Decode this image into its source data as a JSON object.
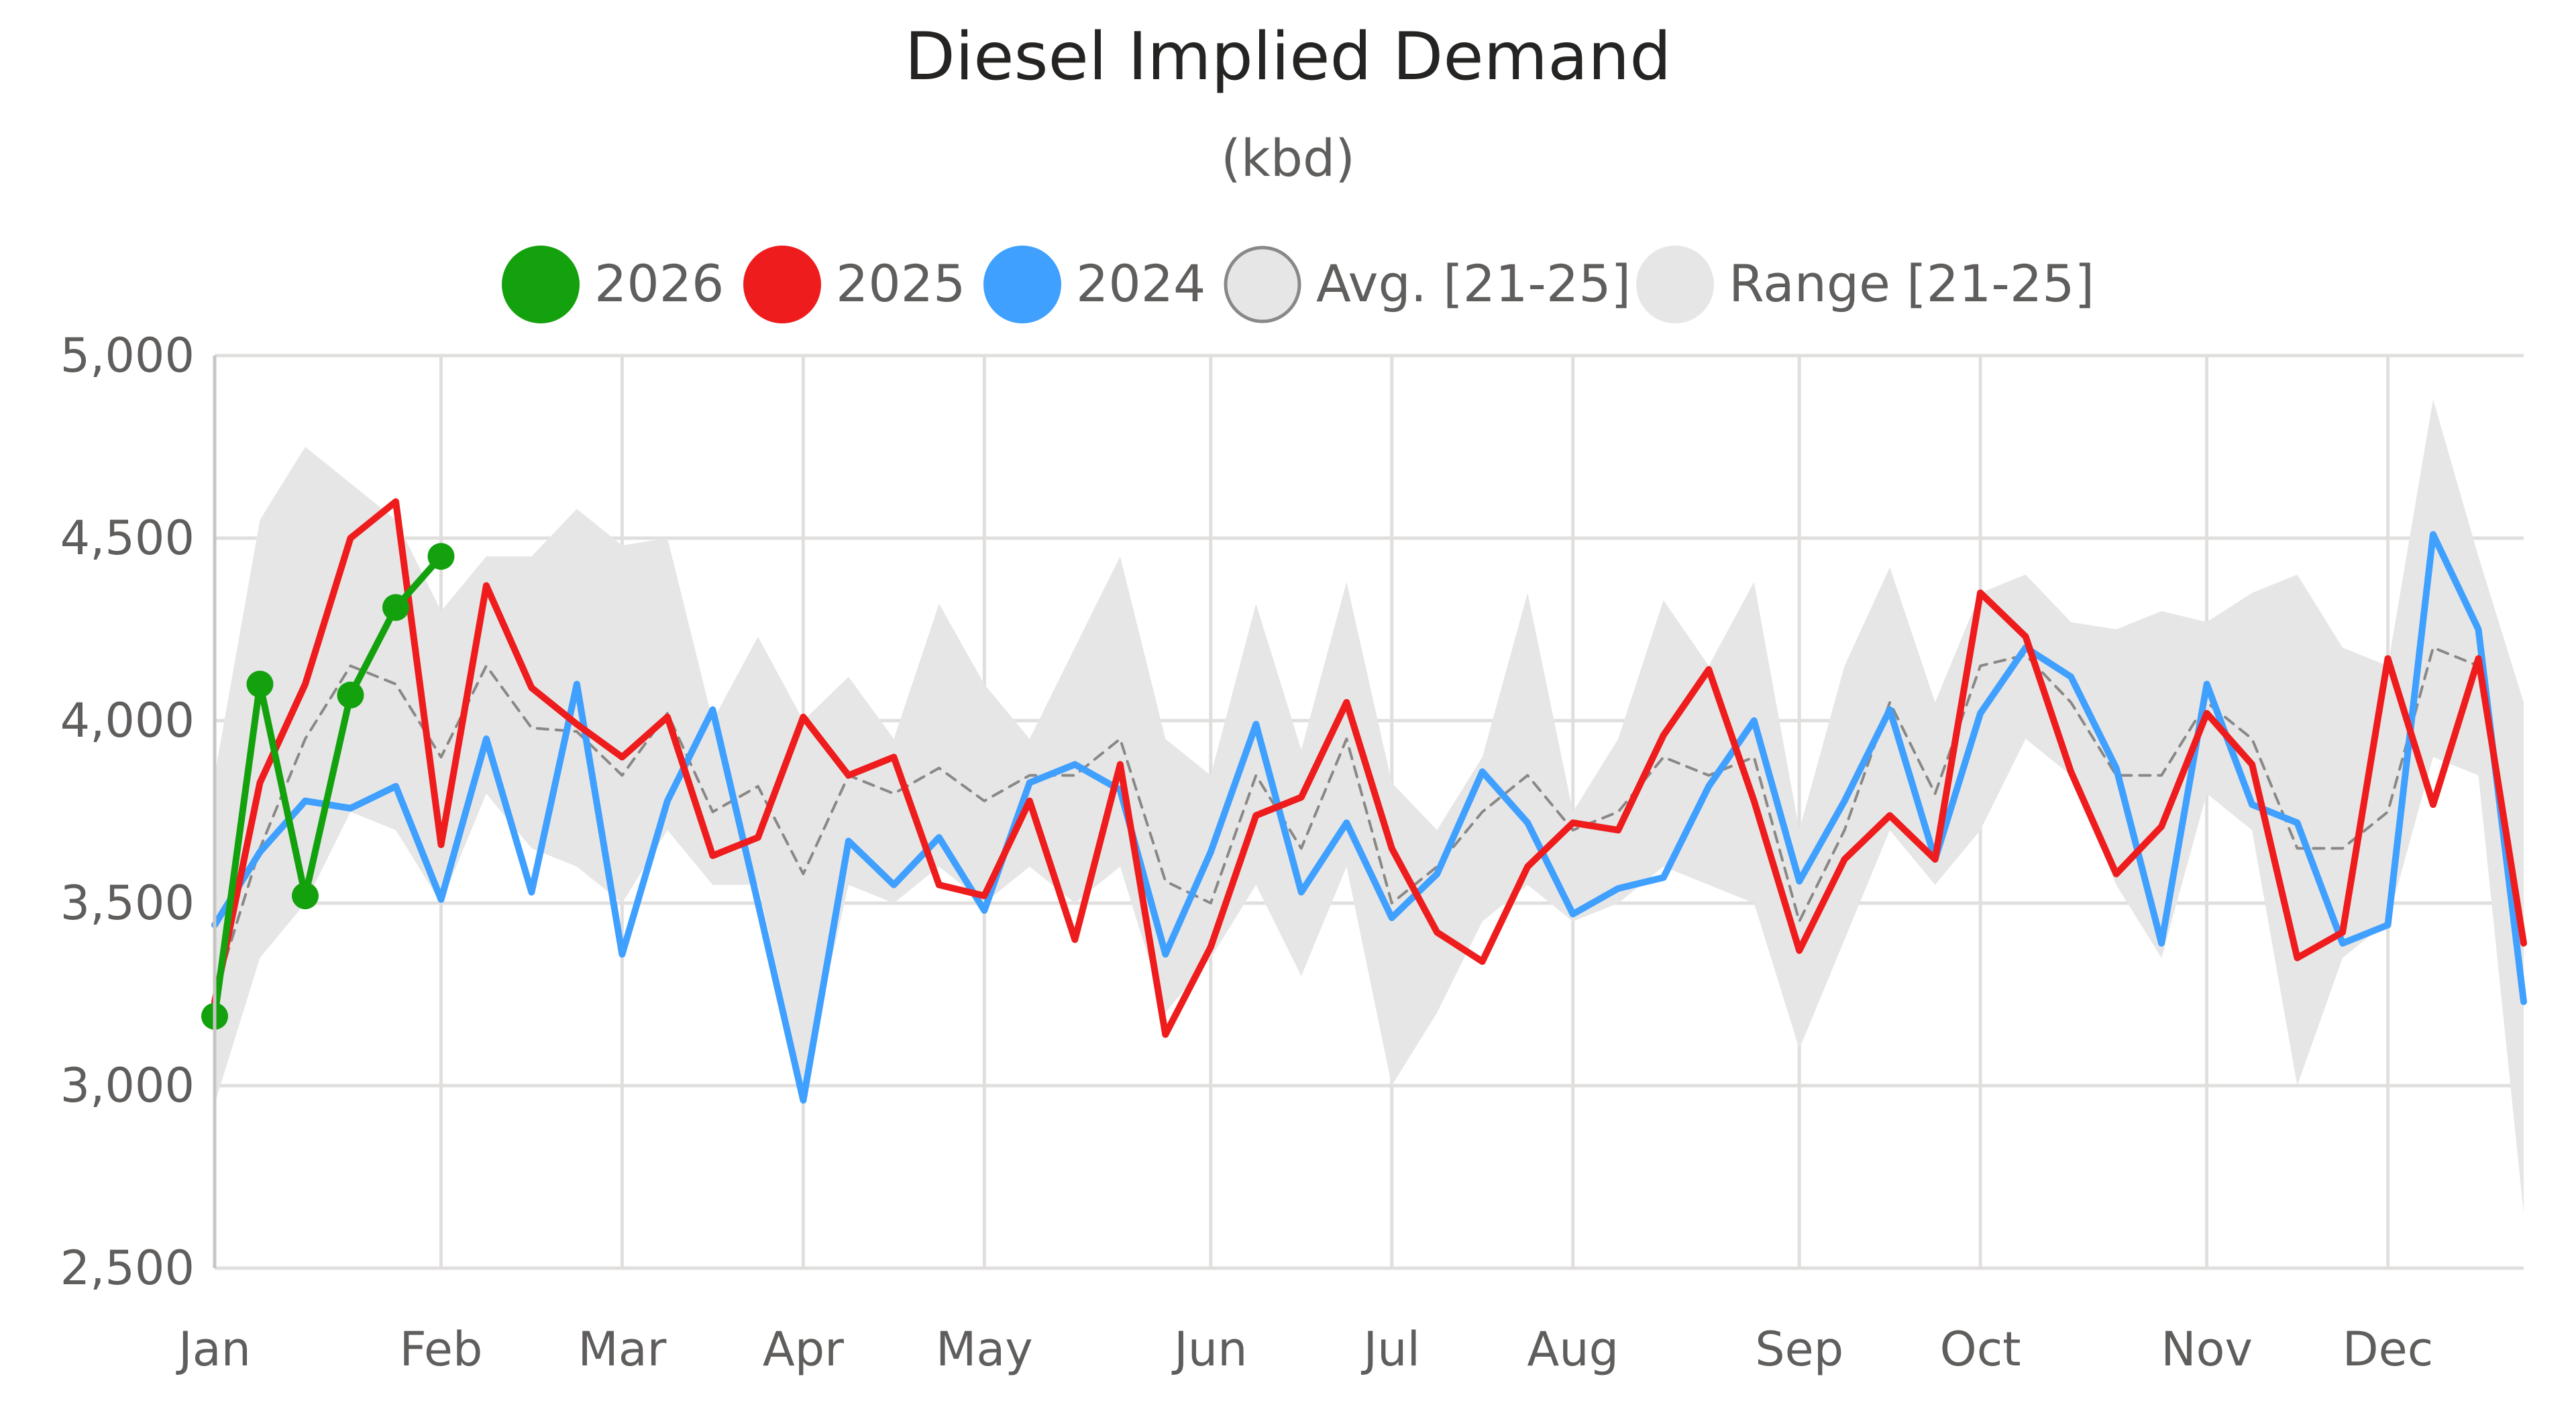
{
  "chart_data": {
    "type": "line",
    "title": "Diesel Implied Demand",
    "subtitle": "(kbd)",
    "legend_position": "top",
    "grid": true,
    "ylim": [
      2500,
      5000
    ],
    "y_ticks": [
      2500,
      3000,
      3500,
      4000,
      4500,
      5000
    ],
    "y_tick_labels": [
      "2,500",
      "3,000",
      "3,500",
      "4,000",
      "4,500",
      "5,000"
    ],
    "x_range": [
      1,
      52
    ],
    "x_unit": "week of year",
    "month_ticks": [
      {
        "label": "Jan",
        "week": 1
      },
      {
        "label": "Feb",
        "week": 6
      },
      {
        "label": "Mar",
        "week": 10
      },
      {
        "label": "Apr",
        "week": 14
      },
      {
        "label": "May",
        "week": 18
      },
      {
        "label": "Jun",
        "week": 23
      },
      {
        "label": "Jul",
        "week": 27
      },
      {
        "label": "Aug",
        "week": 31
      },
      {
        "label": "Sep",
        "week": 36
      },
      {
        "label": "Oct",
        "week": 40
      },
      {
        "label": "Nov",
        "week": 45
      },
      {
        "label": "Dec",
        "week": 49
      }
    ],
    "colors": {
      "s2026": "#13a10e",
      "s2025": "#ee1c1c",
      "s2024": "#3fa0ff",
      "avg": "#8a8886",
      "range": "#e6e6e6"
    },
    "legend": {
      "s2026": "2026",
      "s2025": "2025",
      "s2024": "2024",
      "avg": "Avg. [21-25]",
      "range": "Range [21-25]"
    },
    "series": [
      {
        "key": "s2026",
        "name": "2026",
        "values": [
          3190,
          4100,
          3520,
          4070,
          4310,
          4450
        ]
      },
      {
        "key": "s2025",
        "name": "2025",
        "values": [
          3230,
          3830,
          4100,
          4500,
          4600,
          3660,
          4370,
          4090,
          3990,
          3900,
          4010,
          3630,
          3680,
          4010,
          3850,
          3900,
          3550,
          3520,
          3780,
          3400,
          3880,
          3140,
          3380,
          3740,
          3790,
          4050,
          3650,
          3420,
          3340,
          3600,
          3720,
          3700,
          3960,
          4140,
          3780,
          3370,
          3620,
          3740,
          3620,
          4350,
          4230,
          3860,
          3580,
          3710,
          4020,
          3880,
          3350,
          3420,
          4170,
          3770,
          4170,
          3390
        ]
      },
      {
        "key": "s2024",
        "name": "2024",
        "values": [
          3440,
          3640,
          3780,
          3760,
          3820,
          3510,
          3950,
          3530,
          4100,
          3360,
          3780,
          4030,
          3500,
          2960,
          3670,
          3550,
          3680,
          3480,
          3830,
          3880,
          3810,
          3360,
          3640,
          3990,
          3530,
          3720,
          3460,
          3580,
          3860,
          3720,
          3470,
          3540,
          3570,
          3820,
          4000,
          3560,
          3780,
          4030,
          3620,
          4020,
          4200,
          4120,
          3870,
          3390,
          4100,
          3770,
          3720,
          3390,
          3440,
          4510,
          4250,
          3230
        ]
      },
      {
        "key": "avg",
        "name": "Avg. [21-25]",
        "values": [
          3250,
          3650,
          3950,
          4150,
          4100,
          3900,
          4150,
          3980,
          3970,
          3850,
          4020,
          3750,
          3820,
          3580,
          3850,
          3800,
          3870,
          3780,
          3850,
          3850,
          3950,
          3560,
          3500,
          3850,
          3650,
          3950,
          3500,
          3600,
          3750,
          3850,
          3700,
          3750,
          3900,
          3850,
          3900,
          3450,
          3700,
          4050,
          3800,
          4150,
          4180,
          4050,
          3850,
          3850,
          4050,
          3950,
          3650,
          3650,
          3750,
          4200,
          4150,
          3400
        ]
      },
      {
        "key": "range",
        "name": "Range [21-25]",
        "low": [
          2950,
          3350,
          3500,
          3750,
          3700,
          3500,
          3800,
          3650,
          3600,
          3500,
          3700,
          3550,
          3550,
          3000,
          3550,
          3500,
          3600,
          3500,
          3600,
          3500,
          3600,
          3200,
          3350,
          3550,
          3300,
          3600,
          3000,
          3200,
          3450,
          3550,
          3450,
          3500,
          3600,
          3550,
          3500,
          3100,
          3400,
          3700,
          3550,
          3700,
          3950,
          3850,
          3550,
          3350,
          3800,
          3700,
          3000,
          3350,
          3450,
          3900,
          3850,
          2650
        ],
        "high": [
          3850,
          4550,
          4750,
          4650,
          4550,
          4300,
          4450,
          4450,
          4580,
          4480,
          4500,
          4000,
          4230,
          4000,
          4120,
          3950,
          4320,
          4100,
          3950,
          4200,
          4450,
          3950,
          3850,
          4320,
          3920,
          4380,
          3830,
          3700,
          3900,
          4350,
          3750,
          3950,
          4330,
          4150,
          4380,
          3700,
          4150,
          4420,
          4050,
          4350,
          4400,
          4270,
          4250,
          4300,
          4270,
          4350,
          4400,
          4200,
          4150,
          4880,
          4450,
          4050
        ]
      }
    ]
  }
}
